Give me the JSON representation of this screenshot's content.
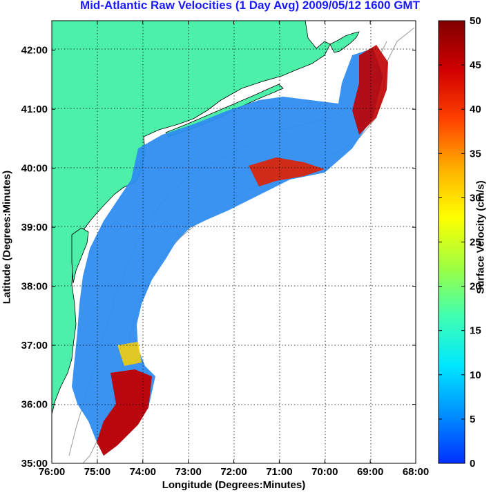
{
  "title": "Mid-Atlantic Raw Velocities (1 Day Avg) 2009/05/12 1600 GMT",
  "x_axis": {
    "label": "Longitude (Degrees:Minutes)",
    "ticks": [
      "76:00",
      "75:00",
      "74:00",
      "73:00",
      "72:00",
      "71:00",
      "70:00",
      "69:00",
      "68:00"
    ]
  },
  "y_axis": {
    "label": "Latitude (Degrees:Minutes)",
    "ticks": [
      "35:00",
      "36:00",
      "37:00",
      "38:00",
      "39:00",
      "40:00",
      "41:00",
      "42:00"
    ]
  },
  "colorbar": {
    "label": "Surface Velocity (cm/s)",
    "ticks": [
      "0",
      "5",
      "10",
      "15",
      "20",
      "25",
      "30",
      "35",
      "40",
      "45",
      "50"
    ],
    "min": 0,
    "max": 50,
    "colors": [
      "#0030ff",
      "#0090ff",
      "#00e8ff",
      "#40ffb0",
      "#a0ff40",
      "#ffff00",
      "#ffb000",
      "#ff4000",
      "#d00000",
      "#800000"
    ]
  },
  "colors": {
    "land": "#4cf0a8",
    "water": "#ffffff",
    "title": "#1a1aff"
  }
}
